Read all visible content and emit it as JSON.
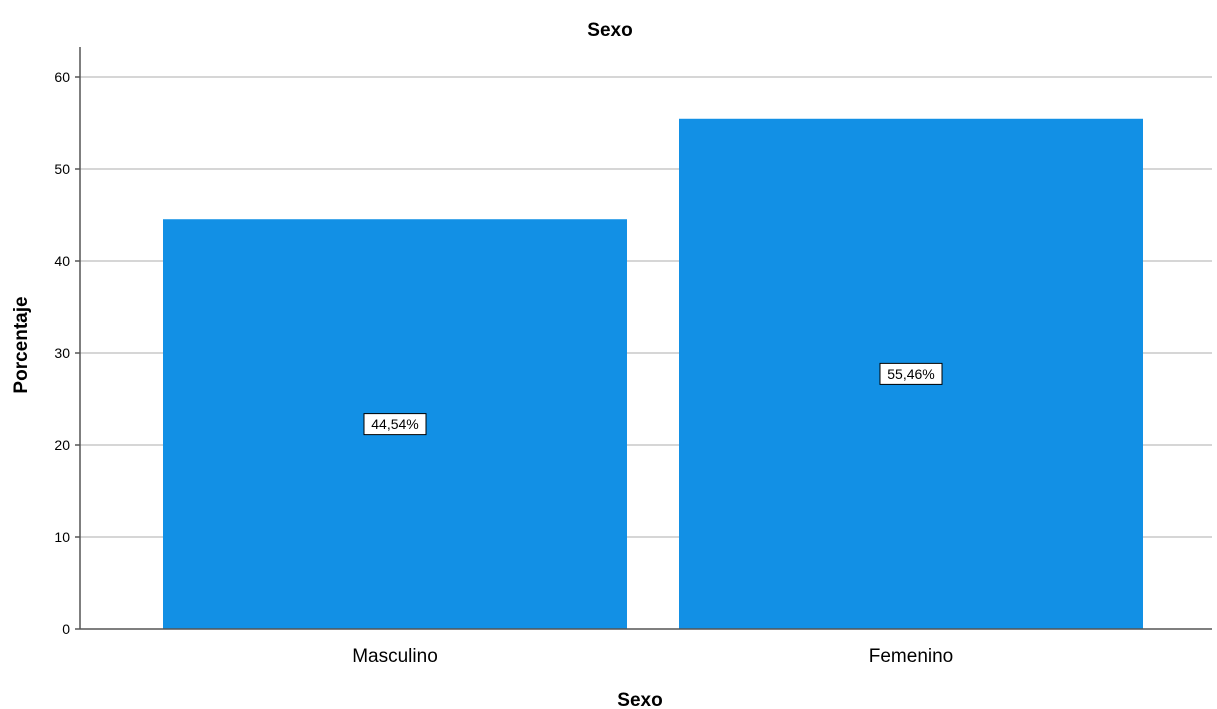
{
  "chart_data": {
    "type": "bar",
    "title": "Sexo",
    "xlabel": "Sexo",
    "ylabel": "Porcentaje",
    "categories": [
      "Masculino",
      "Femenino"
    ],
    "values": [
      44.54,
      55.46
    ],
    "data_labels": [
      "44,54%",
      "55,46%"
    ],
    "ylim": [
      0,
      63
    ],
    "yticks": [
      0,
      10,
      20,
      30,
      40,
      50,
      60
    ],
    "grid": "horizontal",
    "colors": {
      "bar": "#1290e5",
      "grid": "#c8c8c8",
      "axis": "#555555"
    }
  }
}
